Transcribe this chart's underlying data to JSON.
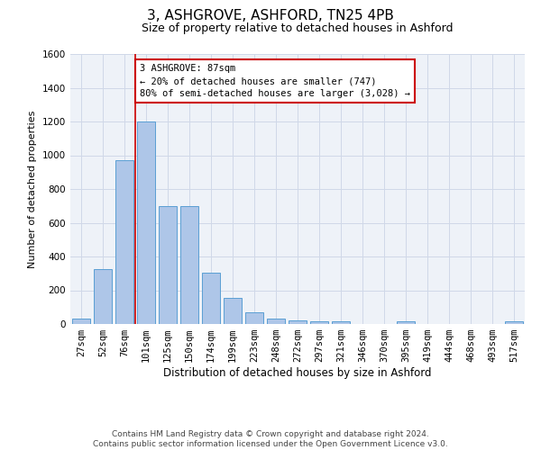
{
  "title": "3, ASHGROVE, ASHFORD, TN25 4PB",
  "subtitle": "Size of property relative to detached houses in Ashford",
  "xlabel": "Distribution of detached houses by size in Ashford",
  "ylabel": "Number of detached properties",
  "footer_line1": "Contains HM Land Registry data © Crown copyright and database right 2024.",
  "footer_line2": "Contains public sector information licensed under the Open Government Licence v3.0.",
  "bar_labels": [
    "27sqm",
    "52sqm",
    "76sqm",
    "101sqm",
    "125sqm",
    "150sqm",
    "174sqm",
    "199sqm",
    "223sqm",
    "248sqm",
    "272sqm",
    "297sqm",
    "321sqm",
    "346sqm",
    "370sqm",
    "395sqm",
    "419sqm",
    "444sqm",
    "468sqm",
    "493sqm",
    "517sqm"
  ],
  "bar_values": [
    30,
    325,
    970,
    1200,
    700,
    700,
    305,
    155,
    70,
    30,
    20,
    15,
    15,
    0,
    0,
    15,
    0,
    0,
    0,
    0,
    15
  ],
  "bar_color": "#aec6e8",
  "bar_edge_color": "#5a9fd4",
  "grid_color": "#d0d8e8",
  "bg_color": "#eef2f8",
  "ylim": [
    0,
    1600
  ],
  "yticks": [
    0,
    200,
    400,
    600,
    800,
    1000,
    1200,
    1400,
    1600
  ],
  "vline_x": 2.5,
  "vline_color": "#cc0000",
  "annotation_text": "3 ASHGROVE: 87sqm\n← 20% of detached houses are smaller (747)\n80% of semi-detached houses are larger (3,028) →",
  "annotation_box_color": "#cc0000",
  "annotation_bg": "white",
  "title_fontsize": 11,
  "subtitle_fontsize": 9,
  "ylabel_fontsize": 8,
  "xlabel_fontsize": 8.5,
  "tick_fontsize": 7.5,
  "footer_fontsize": 6.5
}
